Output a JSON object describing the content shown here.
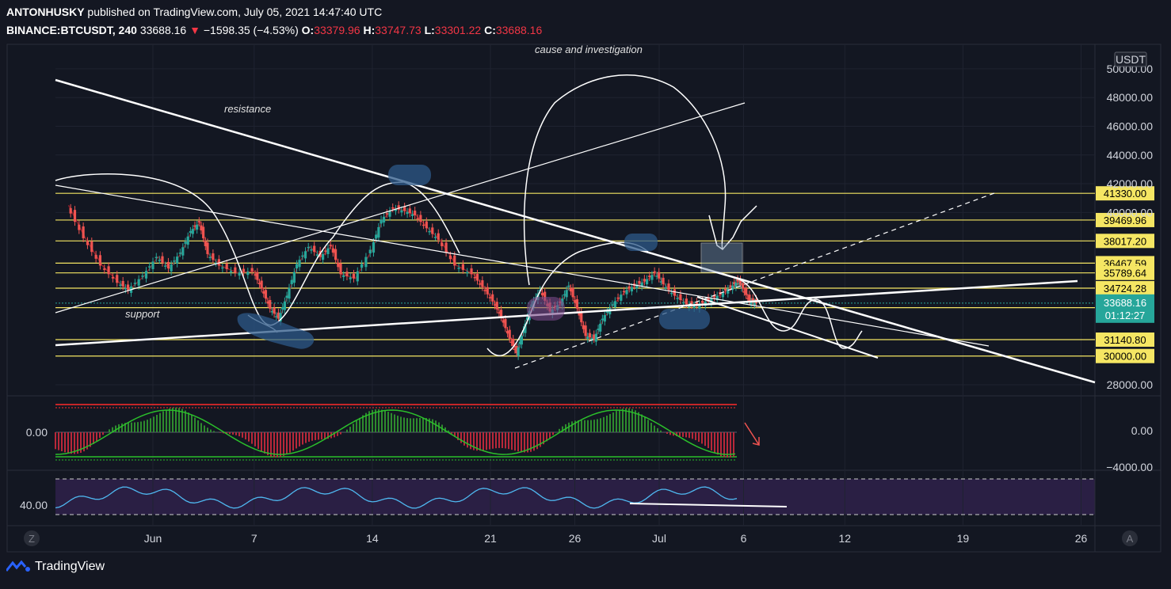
{
  "header": {
    "line1": {
      "author": "ANTONHUSKY",
      "published": "published on TradingView.com, July 05, 2021 14:47:40 UTC"
    },
    "line2": {
      "symbol": "BINANCE:BTCUSDT, 240",
      "last": "33688.16",
      "change": "−1598.35 (−4.53%)",
      "o_label": "O:",
      "o": "33379.96",
      "h_label": "H:",
      "h": "33747.73",
      "l_label": "L:",
      "l": "33301.22",
      "c_label": "C:",
      "c": "33688.16"
    }
  },
  "footer": {
    "brand": "TradingView"
  },
  "chart_data": {
    "type": "candlestick",
    "symbol": "BINANCE:BTCUSDT",
    "interval": "240",
    "currency": "USDT",
    "ylim": [
      27000,
      50500
    ],
    "y_ticks": [
      "50000.00",
      "48000.00",
      "46000.00",
      "44000.00",
      "42000.00",
      "40000.00",
      "28000.00"
    ],
    "x_ticks": [
      "Jun",
      "7",
      "14",
      "21",
      "26",
      "Jul",
      "6",
      "12",
      "19",
      "26"
    ],
    "x_tick_days": [
      31,
      37,
      44,
      51,
      56,
      61,
      66,
      72,
      79,
      86
    ],
    "axis_labels": {
      "left_bottom": "Z",
      "right_bottom": "A"
    },
    "levels": [
      {
        "value": 41330.0,
        "label": "41330.00"
      },
      {
        "value": 39469.96,
        "label": "39469.96"
      },
      {
        "value": 38017.2,
        "label": "38017.20"
      },
      {
        "value": 36467.59,
        "label": "36467.59"
      },
      {
        "value": 35789.64,
        "label": "35789.64"
      },
      {
        "value": 34724.28,
        "label": "34724.28"
      },
      {
        "value": 33368.37,
        "label": "33368.37"
      },
      {
        "value": 31140.8,
        "label": "31140.80"
      },
      {
        "value": 30000.0,
        "label": "30000.00"
      }
    ],
    "current_price": {
      "value": 33688.16,
      "label": "33688.16",
      "countdown": "01:12:27"
    },
    "level_color": "#f5e663",
    "price_tag_color": "#26a69a",
    "up_color": "#26a69a",
    "down_color": "#ef5350",
    "annotations": [
      "cause and investigation",
      "resistance",
      "support"
    ],
    "price_series": [
      {
        "day": 26.0,
        "close": 40500
      },
      {
        "day": 27.0,
        "close": 38200
      },
      {
        "day": 28.0,
        "close": 36300
      },
      {
        "day": 29.0,
        "close": 35100
      },
      {
        "day": 29.6,
        "close": 34600
      },
      {
        "day": 30.5,
        "close": 35600
      },
      {
        "day": 31.3,
        "close": 36900
      },
      {
        "day": 32.0,
        "close": 36100
      },
      {
        "day": 32.7,
        "close": 37200
      },
      {
        "day": 33.3,
        "close": 38700
      },
      {
        "day": 33.8,
        "close": 39300
      },
      {
        "day": 34.3,
        "close": 37100
      },
      {
        "day": 35.0,
        "close": 36300
      },
      {
        "day": 36.0,
        "close": 35800
      },
      {
        "day": 37.0,
        "close": 35900
      },
      {
        "day": 37.5,
        "close": 34700
      },
      {
        "day": 38.0,
        "close": 33300
      },
      {
        "day": 38.5,
        "close": 32600
      },
      {
        "day": 39.0,
        "close": 34200
      },
      {
        "day": 39.6,
        "close": 36400
      },
      {
        "day": 40.3,
        "close": 37600
      },
      {
        "day": 41.0,
        "close": 36900
      },
      {
        "day": 41.6,
        "close": 37700
      },
      {
        "day": 42.2,
        "close": 35700
      },
      {
        "day": 43.0,
        "close": 35400
      },
      {
        "day": 44.0,
        "close": 37400
      },
      {
        "day": 44.6,
        "close": 39500
      },
      {
        "day": 45.3,
        "close": 40300
      },
      {
        "day": 46.0,
        "close": 40100
      },
      {
        "day": 46.6,
        "close": 39800
      },
      {
        "day": 47.3,
        "close": 38900
      },
      {
        "day": 48.0,
        "close": 38100
      },
      {
        "day": 49.0,
        "close": 36300
      },
      {
        "day": 50.0,
        "close": 35700
      },
      {
        "day": 50.6,
        "close": 34800
      },
      {
        "day": 51.2,
        "close": 33800
      },
      {
        "day": 51.7,
        "close": 32700
      },
      {
        "day": 52.2,
        "close": 31200
      },
      {
        "day": 52.6,
        "close": 30200
      },
      {
        "day": 53.0,
        "close": 31800
      },
      {
        "day": 53.5,
        "close": 33600
      },
      {
        "day": 54.0,
        "close": 34600
      },
      {
        "day": 54.6,
        "close": 33100
      },
      {
        "day": 55.2,
        "close": 33700
      },
      {
        "day": 55.7,
        "close": 34900
      },
      {
        "day": 56.2,
        "close": 33300
      },
      {
        "day": 56.7,
        "close": 31400
      },
      {
        "day": 57.2,
        "close": 31200
      },
      {
        "day": 57.7,
        "close": 32600
      },
      {
        "day": 58.3,
        "close": 33600
      },
      {
        "day": 59.0,
        "close": 34500
      },
      {
        "day": 59.6,
        "close": 34900
      },
      {
        "day": 60.2,
        "close": 35200
      },
      {
        "day": 60.8,
        "close": 35800
      },
      {
        "day": 61.3,
        "close": 35000
      },
      {
        "day": 62.0,
        "close": 34200
      },
      {
        "day": 62.7,
        "close": 33600
      },
      {
        "day": 63.3,
        "close": 33500
      },
      {
        "day": 64.0,
        "close": 33900
      },
      {
        "day": 64.7,
        "close": 34300
      },
      {
        "day": 65.3,
        "close": 34800
      },
      {
        "day": 65.7,
        "close": 35200
      },
      {
        "day": 66.0,
        "close": 34700
      },
      {
        "day": 66.4,
        "close": 33800
      },
      {
        "day": 66.8,
        "close": 33690
      }
    ],
    "indicators": [
      {
        "name": "momentum",
        "y_label": "0.00",
        "y_ticks": [
          "0.00",
          "−4000.00"
        ]
      },
      {
        "name": "oscillator",
        "y_label": "40.00"
      }
    ]
  }
}
